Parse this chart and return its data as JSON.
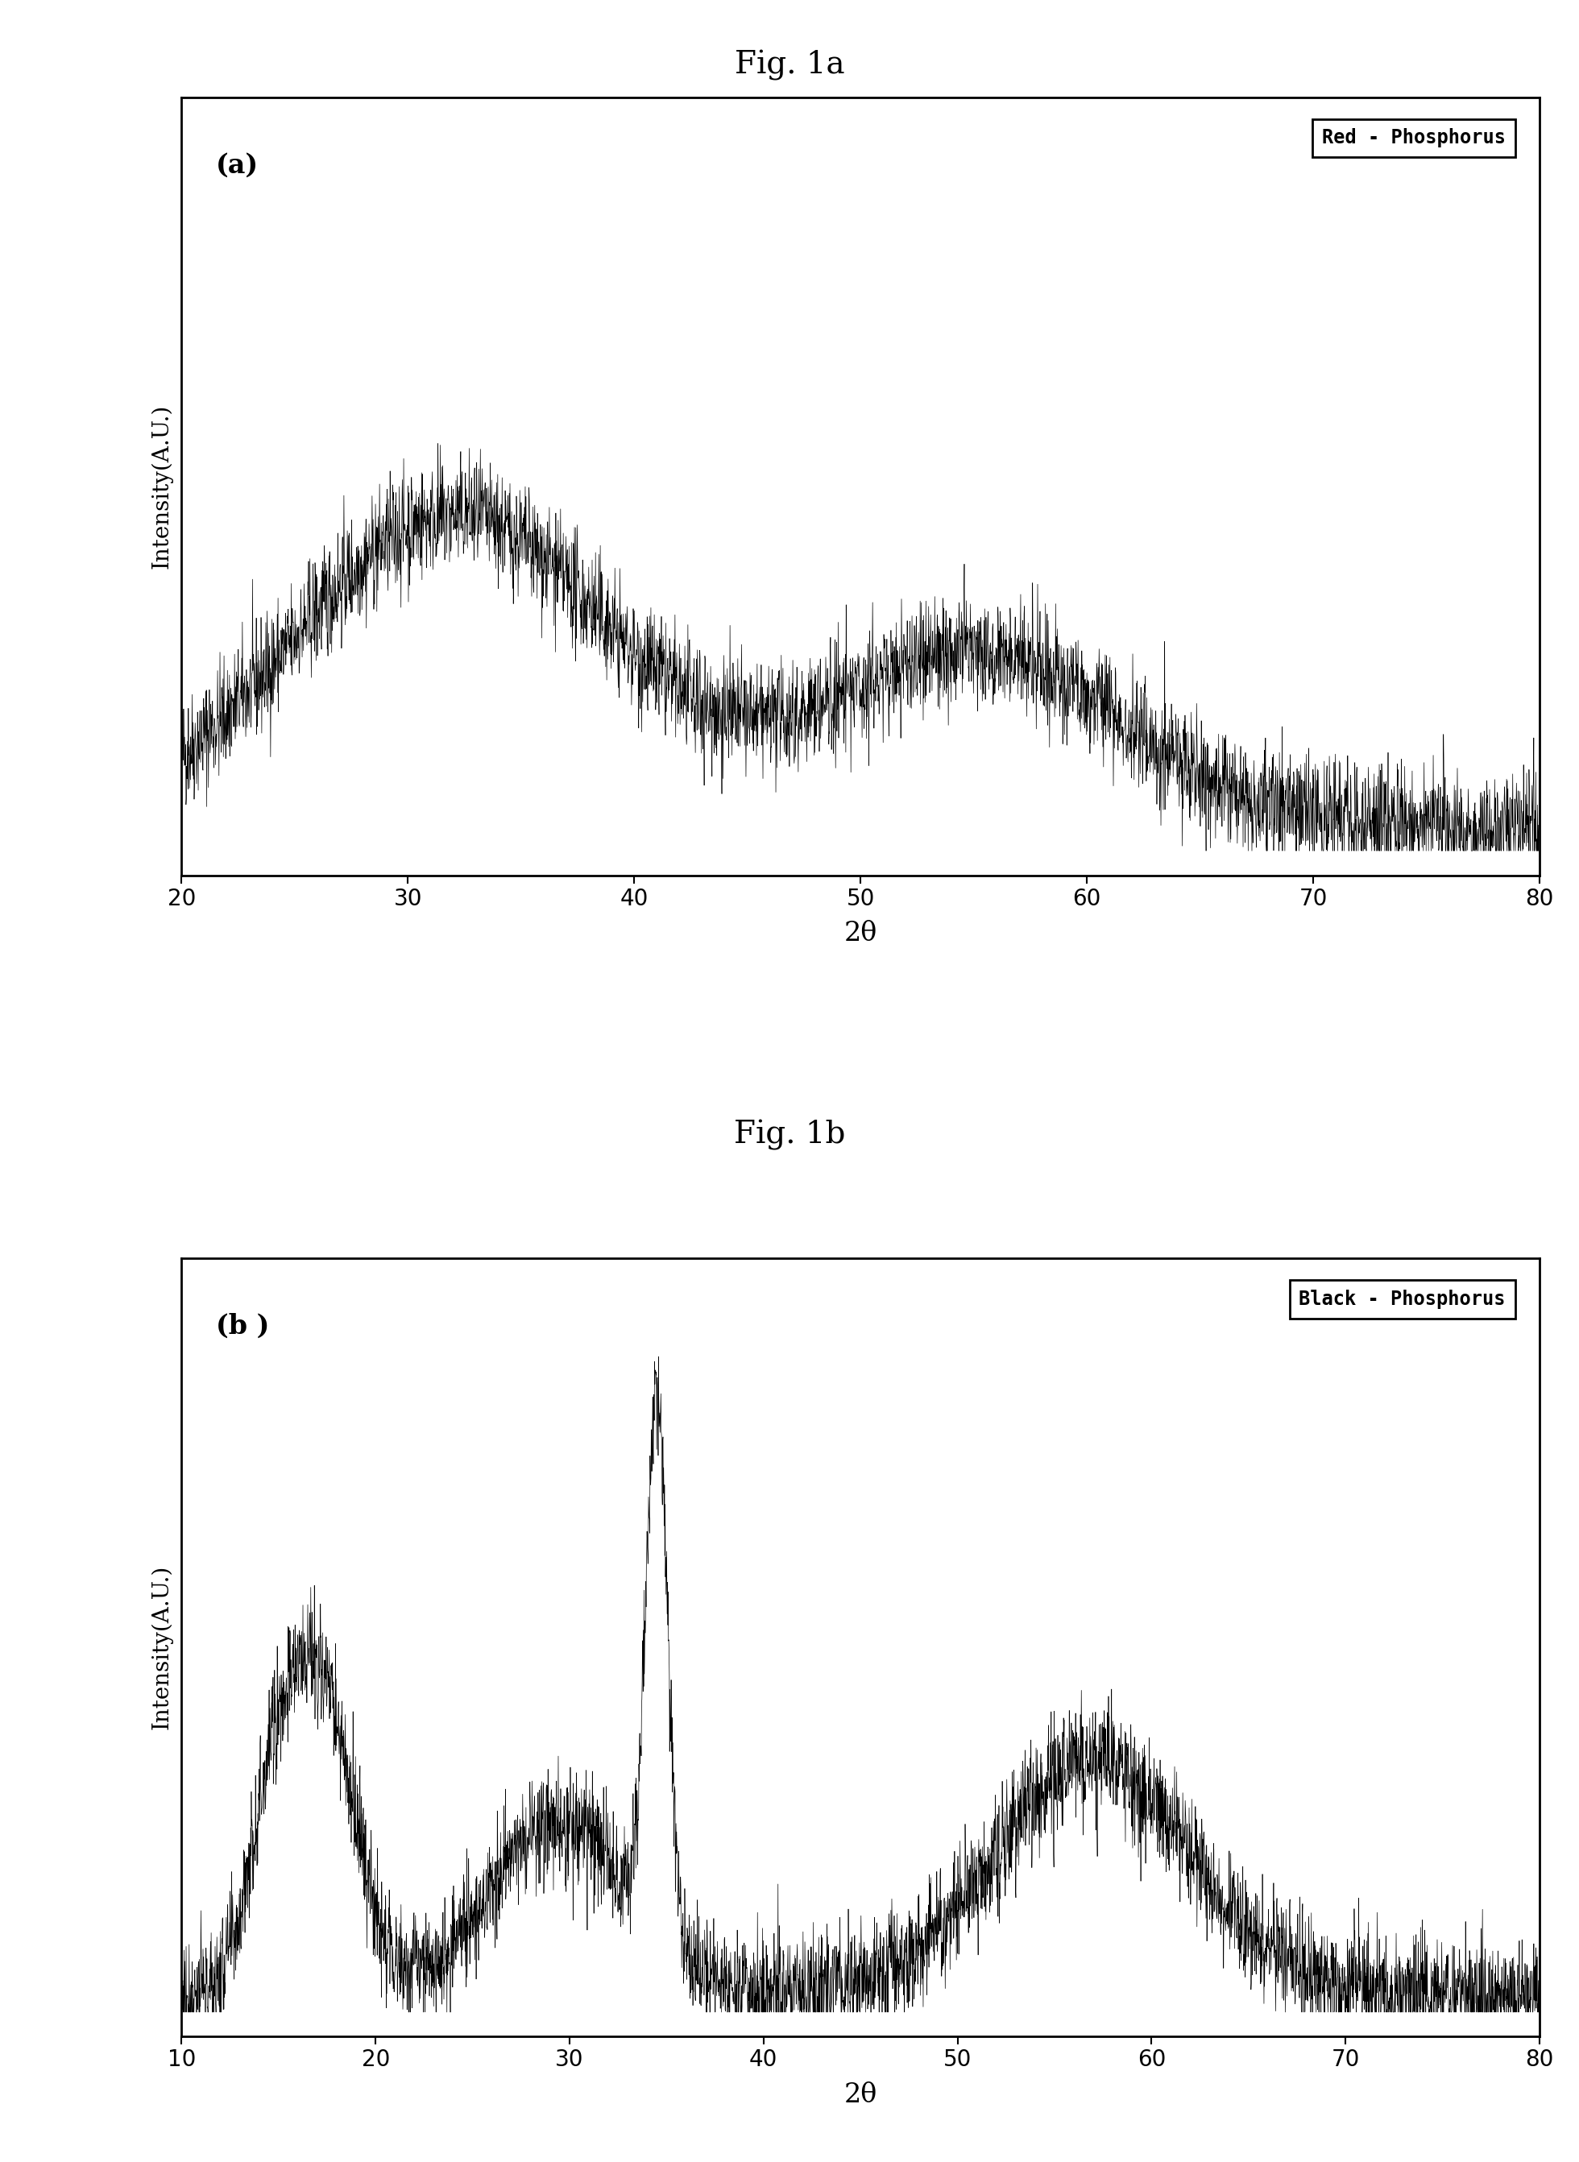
{
  "fig1a_title": "Fig. 1a",
  "fig1b_title": "Fig. 1b",
  "panel_a_label": "(a)",
  "panel_b_label": "(b )",
  "legend_a": "Red - Phosphorus",
  "legend_b": "Black - Phosphorus",
  "xlabel": "2θ",
  "ylabel": "Intensity(A.U.)",
  "panel_a_xlim": [
    20,
    80
  ],
  "panel_b_xlim": [
    10,
    80
  ],
  "panel_a_xticks": [
    20,
    30,
    40,
    50,
    60,
    70,
    80
  ],
  "panel_b_xticks": [
    10,
    20,
    30,
    40,
    50,
    60,
    70,
    80
  ],
  "background_color": "#ffffff",
  "line_color": "#000000",
  "seed_a": 42,
  "seed_b": 77
}
